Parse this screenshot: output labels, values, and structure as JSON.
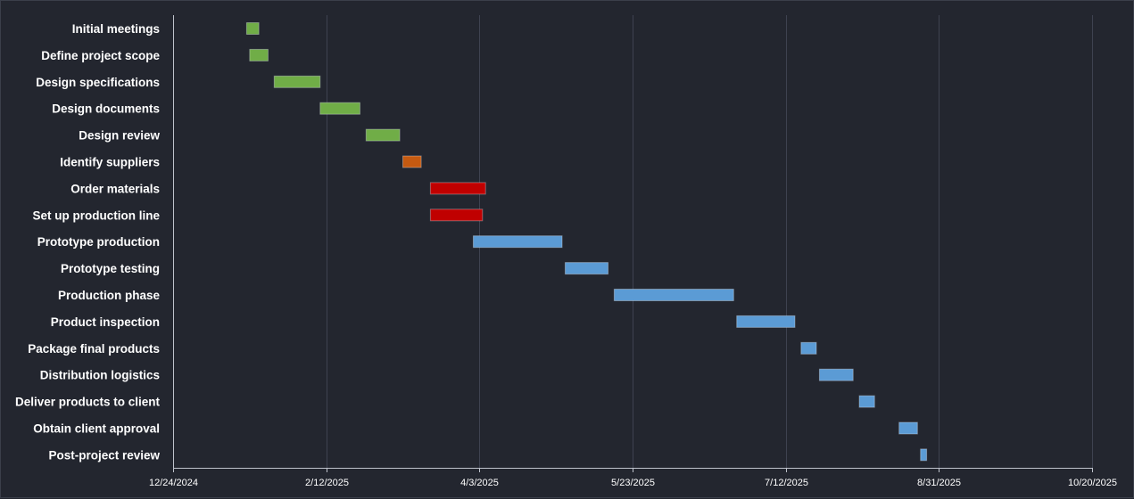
{
  "chart_data": {
    "type": "gantt",
    "title": "",
    "xlabel": "",
    "ylabel": "",
    "x_axis": {
      "min": "2024-12-24",
      "max": "2025-10-20",
      "tick_dates": [
        "2024-12-24",
        "2025-02-12",
        "2025-04-03",
        "2025-05-23",
        "2025-07-12",
        "2025-08-31",
        "2025-10-20"
      ],
      "tick_labels": [
        "12/24/2024",
        "2/12/2025",
        "4/3/2025",
        "5/23/2025",
        "7/12/2025",
        "8/31/2025",
        "10/20/2025"
      ],
      "grid": true
    },
    "legend": "none",
    "phase_colors": {
      "planning": "#70ad47",
      "sourcing": "#c55a11",
      "setup": "#c00000",
      "execution": "#5b9bd5"
    },
    "tasks": [
      {
        "name": "Initial meetings",
        "start": "2025-01-17",
        "end": "2025-01-21",
        "phase": "planning"
      },
      {
        "name": "Define project scope",
        "start": "2025-01-18",
        "end": "2025-01-24",
        "phase": "planning"
      },
      {
        "name": "Design specifications",
        "start": "2025-01-26",
        "end": "2025-02-10",
        "phase": "planning"
      },
      {
        "name": "Design documents",
        "start": "2025-02-10",
        "end": "2025-02-23",
        "phase": "planning"
      },
      {
        "name": "Design review",
        "start": "2025-02-25",
        "end": "2025-03-08",
        "phase": "planning"
      },
      {
        "name": "Identify suppliers",
        "start": "2025-03-09",
        "end": "2025-03-15",
        "phase": "sourcing"
      },
      {
        "name": "Order materials",
        "start": "2025-03-18",
        "end": "2025-04-05",
        "phase": "setup"
      },
      {
        "name": "Set up production line",
        "start": "2025-03-18",
        "end": "2025-04-04",
        "phase": "setup"
      },
      {
        "name": "Prototype production",
        "start": "2025-04-01",
        "end": "2025-04-30",
        "phase": "execution"
      },
      {
        "name": "Prototype testing",
        "start": "2025-05-01",
        "end": "2025-05-15",
        "phase": "execution"
      },
      {
        "name": "Production phase",
        "start": "2025-05-17",
        "end": "2025-06-25",
        "phase": "execution"
      },
      {
        "name": "Product inspection",
        "start": "2025-06-26",
        "end": "2025-07-15",
        "phase": "execution"
      },
      {
        "name": "Package final products",
        "start": "2025-07-17",
        "end": "2025-07-22",
        "phase": "execution"
      },
      {
        "name": "Distribution logistics",
        "start": "2025-07-23",
        "end": "2025-08-03",
        "phase": "execution"
      },
      {
        "name": "Deliver products to client",
        "start": "2025-08-05",
        "end": "2025-08-10",
        "phase": "execution"
      },
      {
        "name": "Obtain client approval",
        "start": "2025-08-18",
        "end": "2025-08-24",
        "phase": "execution"
      },
      {
        "name": "Post-project review",
        "start": "2025-08-25",
        "end": "2025-08-27",
        "phase": "execution"
      }
    ]
  }
}
